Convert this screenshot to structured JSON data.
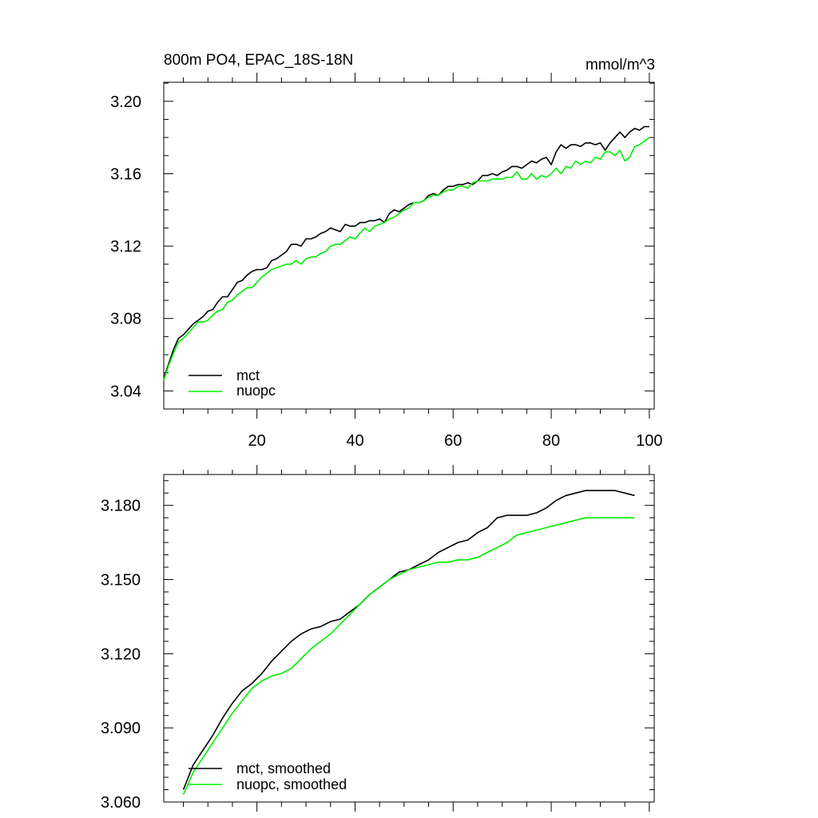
{
  "colors": {
    "mct": "#000000",
    "nuopc": "#00ee00"
  },
  "chart_data": [
    {
      "type": "line",
      "title": "800m PO4, EPAC_18S-18N",
      "units": "mmol/m^3",
      "xlim": [
        1,
        101
      ],
      "ylim": [
        3.03,
        3.2105
      ],
      "xticks": [
        20,
        40,
        60,
        80,
        100
      ],
      "xtick_labels": [
        "20",
        "40",
        "60",
        "80",
        "100"
      ],
      "yticks": [
        3.04,
        3.08,
        3.12,
        3.16,
        3.2
      ],
      "ytick_labels": [
        "3.04",
        "3.08",
        "3.12",
        "3.16",
        "3.20"
      ],
      "x_minor_step": 5,
      "y_minor_step": 0.01,
      "grid": false,
      "legend_position": "bottom-left",
      "series": [
        {
          "name": "mct",
          "color": "#000000",
          "x": [
            1,
            2,
            3,
            4,
            5,
            6,
            7,
            8,
            9,
            10,
            11,
            12,
            13,
            14,
            15,
            16,
            17,
            18,
            19,
            20,
            21,
            22,
            23,
            24,
            25,
            26,
            27,
            28,
            29,
            30,
            31,
            32,
            33,
            34,
            35,
            36,
            37,
            38,
            39,
            40,
            41,
            42,
            43,
            44,
            45,
            46,
            47,
            48,
            49,
            50,
            51,
            52,
            53,
            54,
            55,
            56,
            57,
            58,
            59,
            60,
            61,
            62,
            63,
            64,
            65,
            66,
            67,
            68,
            69,
            70,
            71,
            72,
            73,
            74,
            75,
            76,
            77,
            78,
            79,
            80,
            81,
            82,
            83,
            84,
            85,
            86,
            87,
            88,
            89,
            90,
            91,
            92,
            93,
            94,
            95,
            96,
            97,
            98,
            99,
            100
          ],
          "y": [
            3.047,
            3.055,
            3.063,
            3.069,
            3.071,
            3.074,
            3.077,
            3.079,
            3.081,
            3.084,
            3.085,
            3.089,
            3.092,
            3.092,
            3.096,
            3.1,
            3.101,
            3.104,
            3.106,
            3.107,
            3.107,
            3.108,
            3.112,
            3.113,
            3.115,
            3.117,
            3.121,
            3.121,
            3.12,
            3.124,
            3.124,
            3.125,
            3.127,
            3.128,
            3.13,
            3.129,
            3.128,
            3.132,
            3.131,
            3.131,
            3.133,
            3.133,
            3.134,
            3.134,
            3.135,
            3.133,
            3.138,
            3.14,
            3.139,
            3.141,
            3.143,
            3.144,
            3.144,
            3.145,
            3.148,
            3.149,
            3.148,
            3.151,
            3.153,
            3.153,
            3.154,
            3.154,
            3.155,
            3.154,
            3.156,
            3.159,
            3.159,
            3.16,
            3.159,
            3.161,
            3.162,
            3.164,
            3.164,
            3.163,
            3.165,
            3.167,
            3.166,
            3.168,
            3.169,
            3.165,
            3.172,
            3.176,
            3.174,
            3.176,
            3.176,
            3.175,
            3.177,
            3.177,
            3.176,
            3.177,
            3.173,
            3.177,
            3.18,
            3.183,
            3.18,
            3.183,
            3.185,
            3.184,
            3.186,
            3.186
          ]
        },
        {
          "name": "nuopc",
          "color": "#00ee00",
          "x": [
            1,
            2,
            3,
            4,
            5,
            6,
            7,
            8,
            9,
            10,
            11,
            12,
            13,
            14,
            15,
            16,
            17,
            18,
            19,
            20,
            21,
            22,
            23,
            24,
            25,
            26,
            27,
            28,
            29,
            30,
            31,
            32,
            33,
            34,
            35,
            36,
            37,
            38,
            39,
            40,
            41,
            42,
            43,
            44,
            45,
            46,
            47,
            48,
            49,
            50,
            51,
            52,
            53,
            54,
            55,
            56,
            57,
            58,
            59,
            60,
            61,
            62,
            63,
            64,
            65,
            66,
            67,
            68,
            69,
            70,
            71,
            72,
            73,
            74,
            75,
            76,
            77,
            78,
            79,
            80,
            81,
            82,
            83,
            84,
            85,
            86,
            87,
            88,
            89,
            90,
            91,
            92,
            93,
            94,
            95,
            96,
            97,
            98,
            99,
            100
          ],
          "y": [
            3.046,
            3.054,
            3.061,
            3.067,
            3.069,
            3.072,
            3.075,
            3.078,
            3.078,
            3.079,
            3.082,
            3.084,
            3.085,
            3.089,
            3.09,
            3.093,
            3.095,
            3.097,
            3.097,
            3.1,
            3.103,
            3.105,
            3.107,
            3.108,
            3.109,
            3.11,
            3.11,
            3.112,
            3.11,
            3.113,
            3.114,
            3.114,
            3.116,
            3.117,
            3.12,
            3.121,
            3.121,
            3.123,
            3.125,
            3.124,
            3.127,
            3.13,
            3.128,
            3.131,
            3.132,
            3.133,
            3.135,
            3.136,
            3.138,
            3.14,
            3.141,
            3.144,
            3.144,
            3.145,
            3.147,
            3.148,
            3.148,
            3.15,
            3.151,
            3.151,
            3.153,
            3.153,
            3.152,
            3.155,
            3.156,
            3.156,
            3.156,
            3.157,
            3.157,
            3.157,
            3.158,
            3.158,
            3.161,
            3.157,
            3.157,
            3.16,
            3.157,
            3.159,
            3.158,
            3.16,
            3.163,
            3.16,
            3.164,
            3.163,
            3.167,
            3.165,
            3.167,
            3.166,
            3.169,
            3.168,
            3.172,
            3.172,
            3.17,
            3.173,
            3.167,
            3.169,
            3.175,
            3.176,
            3.178,
            3.18
          ]
        }
      ]
    },
    {
      "type": "line",
      "title": "",
      "xlim": [
        1,
        101
      ],
      "ylim": [
        3.06,
        3.1925
      ],
      "xticks": [
        20,
        40,
        60,
        80,
        100
      ],
      "xtick_labels": [],
      "yticks": [
        3.06,
        3.09,
        3.12,
        3.15,
        3.18
      ],
      "ytick_labels": [
        "3.060",
        "3.090",
        "3.120",
        "3.150",
        "3.180"
      ],
      "x_minor_step": 5,
      "y_minor_step": 0.005,
      "grid": false,
      "legend_position": "bottom-left",
      "series": [
        {
          "name": "mct, smoothed",
          "color": "#000000",
          "x": [
            5,
            7,
            9,
            11,
            13,
            15,
            17,
            19,
            21,
            23,
            25,
            27,
            29,
            31,
            33,
            35,
            37,
            39,
            41,
            43,
            45,
            47,
            49,
            51,
            53,
            55,
            57,
            59,
            61,
            63,
            65,
            67,
            69,
            71,
            73,
            75,
            77,
            79,
            81,
            83,
            85,
            87,
            89,
            91,
            93,
            95,
            97
          ],
          "y": [
            3.065,
            3.075,
            3.081,
            3.087,
            3.094,
            3.1,
            3.105,
            3.108,
            3.112,
            3.117,
            3.121,
            3.125,
            3.128,
            3.13,
            3.131,
            3.133,
            3.134,
            3.137,
            3.14,
            3.144,
            3.147,
            3.15,
            3.153,
            3.154,
            3.156,
            3.158,
            3.161,
            3.163,
            3.165,
            3.166,
            3.169,
            3.171,
            3.175,
            3.176,
            3.176,
            3.176,
            3.177,
            3.179,
            3.182,
            3.184,
            3.185,
            3.186,
            3.186,
            3.186,
            3.186,
            3.185,
            3.184
          ]
        },
        {
          "name": "nuopc, smoothed",
          "color": "#00ee00",
          "x": [
            5,
            7,
            9,
            11,
            13,
            15,
            17,
            19,
            21,
            23,
            25,
            27,
            29,
            31,
            33,
            35,
            37,
            39,
            41,
            43,
            45,
            47,
            49,
            51,
            53,
            55,
            57,
            59,
            61,
            63,
            65,
            67,
            69,
            71,
            73,
            75,
            77,
            79,
            81,
            83,
            85,
            87,
            89,
            91,
            93,
            95,
            97
          ],
          "y": [
            3.063,
            3.072,
            3.078,
            3.084,
            3.09,
            3.096,
            3.101,
            3.106,
            3.109,
            3.111,
            3.112,
            3.114,
            3.118,
            3.122,
            3.125,
            3.128,
            3.132,
            3.136,
            3.14,
            3.144,
            3.147,
            3.15,
            3.152,
            3.154,
            3.155,
            3.156,
            3.157,
            3.157,
            3.158,
            3.158,
            3.159,
            3.161,
            3.163,
            3.165,
            3.168,
            3.169,
            3.17,
            3.171,
            3.172,
            3.173,
            3.174,
            3.175,
            3.175,
            3.175,
            3.175,
            3.175,
            3.175
          ]
        }
      ]
    }
  ]
}
